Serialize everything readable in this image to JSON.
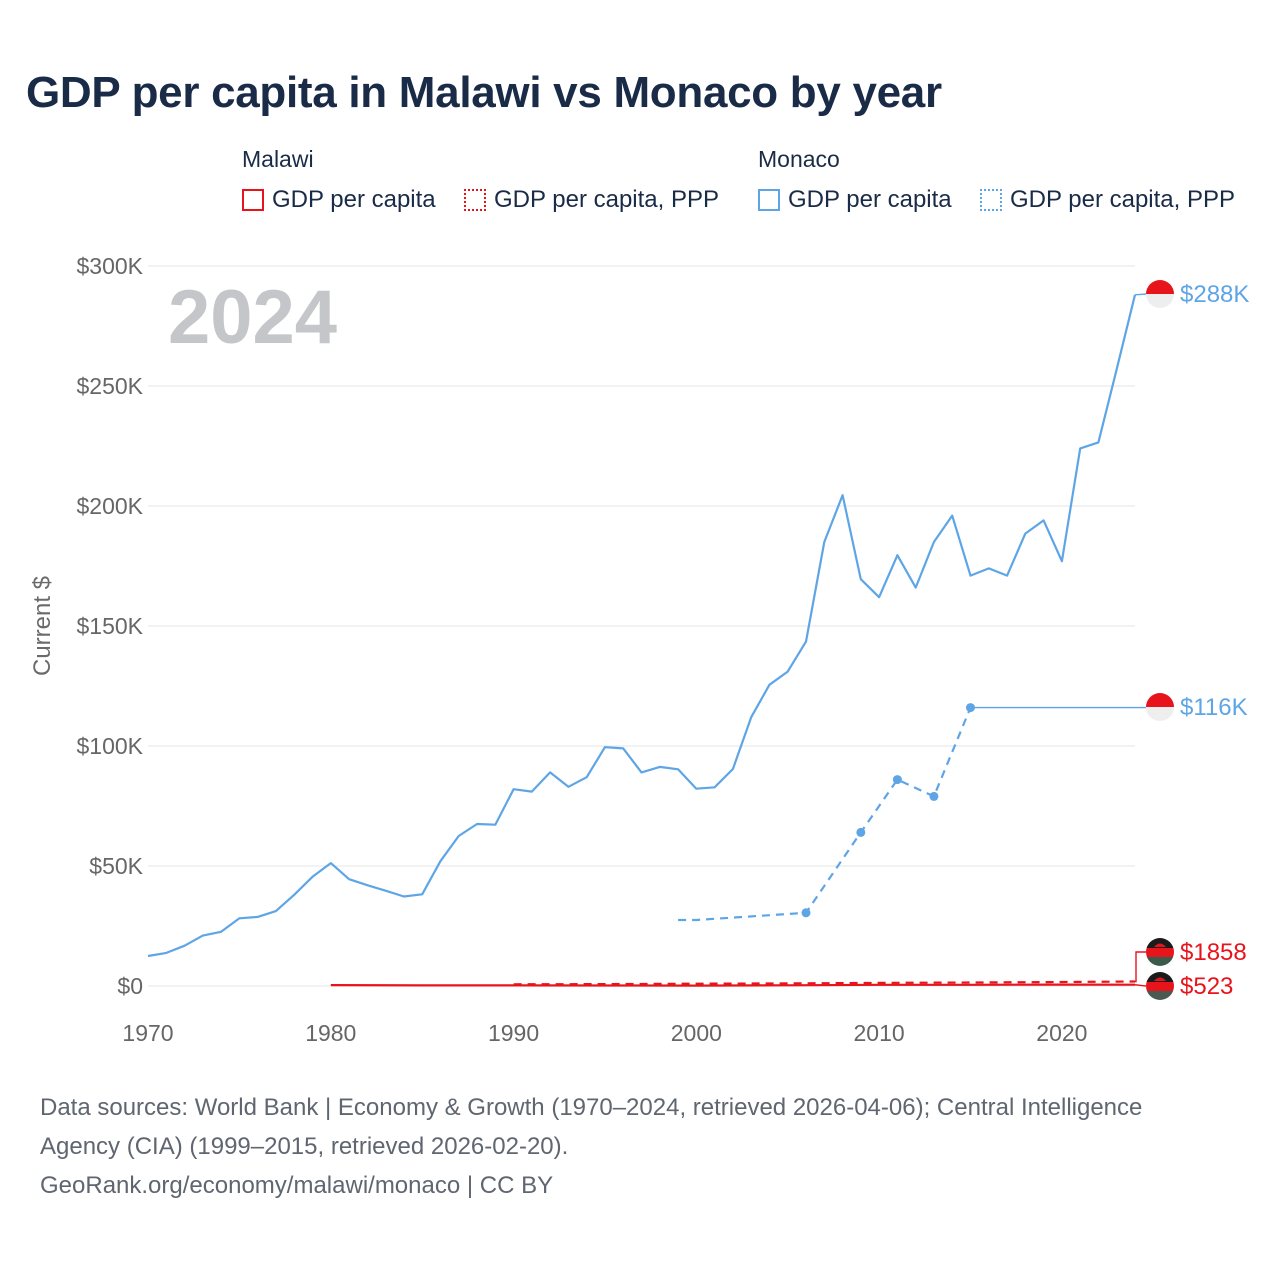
{
  "title": "GDP per capita in Malawi vs Monaco by year",
  "legend": {
    "groups": [
      {
        "name": "Malawi",
        "items": [
          "GDP per capita",
          "GDP per capita, PPP"
        ]
      },
      {
        "name": "Monaco",
        "items": [
          "GDP per capita",
          "GDP per capita, PPP"
        ]
      }
    ]
  },
  "colors": {
    "malawi": "#e8141c",
    "monaco": "#5ea5e6",
    "grid": "#e4e4e4",
    "axis_text": "#666666",
    "year_watermark": "#c4c6c9"
  },
  "year_label": "2024",
  "end_labels": {
    "monaco_gdp": "$288K",
    "monaco_ppp": "$116K",
    "malawi_ppp": "$1858",
    "malawi_gdp": "$523"
  },
  "chart_data": {
    "type": "line",
    "ylabel": "Current $",
    "xlim": [
      1970,
      2024
    ],
    "ylim": [
      0,
      300000
    ],
    "x_ticks": [
      1970,
      1980,
      1990,
      2000,
      2010,
      2020
    ],
    "y_ticks": [
      {
        "value": 0,
        "label": "$0"
      },
      {
        "value": 50000,
        "label": "$50K"
      },
      {
        "value": 100000,
        "label": "$100K"
      },
      {
        "value": 150000,
        "label": "$150K"
      },
      {
        "value": 200000,
        "label": "$200K"
      },
      {
        "value": 250000,
        "label": "$250K"
      },
      {
        "value": 300000,
        "label": "$300K"
      }
    ],
    "series": [
      {
        "name": "Monaco GDP per capita",
        "country": "Monaco",
        "style": "solid",
        "x": [
          1970,
          1971,
          1972,
          1973,
          1974,
          1975,
          1976,
          1977,
          1978,
          1979,
          1980,
          1981,
          1982,
          1983,
          1984,
          1985,
          1986,
          1987,
          1988,
          1989,
          1990,
          1991,
          1992,
          1993,
          1994,
          1995,
          1996,
          1997,
          1998,
          1999,
          2000,
          2001,
          2002,
          2003,
          2004,
          2005,
          2006,
          2007,
          2008,
          2009,
          2010,
          2011,
          2012,
          2013,
          2014,
          2015,
          2016,
          2017,
          2018,
          2019,
          2020,
          2021,
          2022,
          2023,
          2024
        ],
        "y": [
          12500,
          13800,
          16800,
          21000,
          22600,
          28200,
          28800,
          31200,
          38000,
          45500,
          51200,
          44500,
          42000,
          39700,
          37300,
          38200,
          52000,
          62500,
          67500,
          67200,
          82000,
          81000,
          89000,
          83000,
          87000,
          99500,
          99000,
          89000,
          91300,
          90300,
          82200,
          82800,
          90400,
          112000,
          125500,
          131000,
          143500,
          185000,
          204500,
          169500,
          162000,
          179500,
          166000,
          185000,
          196000,
          171000,
          174000,
          171000,
          188500,
          194000,
          177000,
          224000,
          226500,
          257000,
          288000
        ]
      },
      {
        "name": "Monaco GDP per capita, PPP",
        "country": "Monaco",
        "style": "dashed",
        "x": [
          1999,
          2000,
          2006,
          2009,
          2011,
          2013,
          2015
        ],
        "y": [
          27500,
          27500,
          30500,
          64000,
          86000,
          79000,
          116000
        ],
        "markers": [
          2006,
          2009,
          2011,
          2013,
          2015
        ],
        "carried_forward_to": 2024
      },
      {
        "name": "Malawi GDP per capita",
        "country": "Malawi",
        "style": "solid",
        "x": [
          1980,
          1985,
          1990,
          1995,
          2000,
          2005,
          2010,
          2015,
          2020,
          2024
        ],
        "y": [
          390,
          250,
          230,
          200,
          160,
          280,
          480,
          480,
          600,
          523
        ]
      },
      {
        "name": "Malawi GDP per capita, PPP",
        "country": "Malawi",
        "style": "dashed",
        "x": [
          1990,
          1995,
          2000,
          2005,
          2010,
          2015,
          2020,
          2024
        ],
        "y": [
          700,
          800,
          950,
          1100,
          1300,
          1450,
          1650,
          1858
        ]
      }
    ]
  },
  "sources": {
    "line1": "Data sources: World Bank | Economy & Growth (1970–2024, retrieved 2026-04-06); Central Intelligence",
    "line2": "Agency (CIA) (1999–2015, retrieved 2026-02-20).",
    "line3": "GeoRank.org/economy/malawi/monaco | CC BY"
  }
}
